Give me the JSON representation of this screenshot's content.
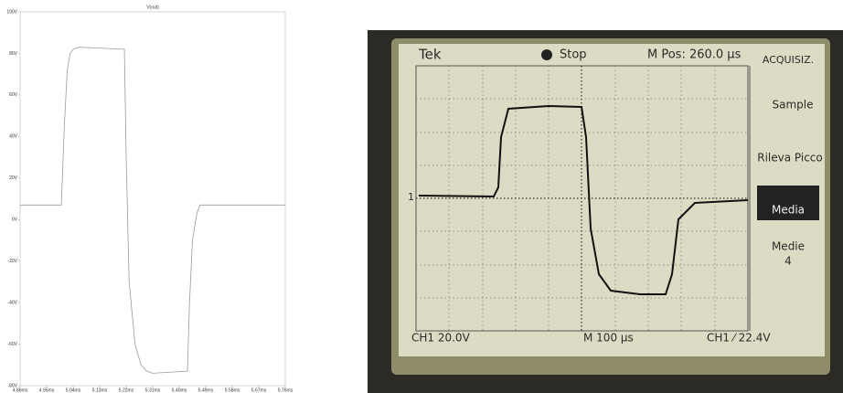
{
  "chart_data": {
    "type": "line",
    "title": "V(out)",
    "x": [
      4.86,
      5.0,
      5.01,
      5.02,
      5.03,
      5.04,
      5.06,
      5.214,
      5.22,
      5.23,
      5.25,
      5.27,
      5.29,
      5.31,
      5.428,
      5.435,
      5.445,
      5.46,
      5.47,
      5.76
    ],
    "series": [
      {
        "name": "V(out)",
        "color": "#9a9a9a",
        "values": [
          7,
          7,
          45,
          72,
          80,
          82,
          83,
          82,
          30,
          -30,
          -60,
          -70,
          -73,
          -74,
          -73,
          -40,
          -10,
          3,
          7,
          7
        ]
      }
    ],
    "xlim": [
      4.86,
      5.76
    ],
    "xticks": [
      {
        "value": 4.86,
        "label": "4.86ms"
      },
      {
        "value": 4.95,
        "label": "4.95ms"
      },
      {
        "value": 5.04,
        "label": "5.04ms"
      },
      {
        "value": 5.13,
        "label": "5.13ms"
      },
      {
        "value": 5.22,
        "label": "5.22ms"
      },
      {
        "value": 5.31,
        "label": "5.31ms"
      },
      {
        "value": 5.4,
        "label": "5.40ms"
      },
      {
        "value": 5.49,
        "label": "5.49ms"
      },
      {
        "value": 5.58,
        "label": "5.58ms"
      },
      {
        "value": 5.67,
        "label": "5.67ms"
      },
      {
        "value": 5.76,
        "label": "5.76ms"
      }
    ],
    "ylim": [
      -80,
      100
    ],
    "yticks": [
      {
        "value": -80,
        "label": "-80V"
      },
      {
        "value": -60,
        "label": "-60V"
      },
      {
        "value": -40,
        "label": "-40V"
      },
      {
        "value": -20,
        "label": "-20V"
      },
      {
        "value": 0,
        "label": "0V"
      },
      {
        "value": 20,
        "label": "20V"
      },
      {
        "value": 40,
        "label": "40V"
      },
      {
        "value": 60,
        "label": "60V"
      },
      {
        "value": 80,
        "label": "80V"
      },
      {
        "value": 100,
        "label": "100V"
      }
    ]
  },
  "scope": {
    "brand": "Tek",
    "status": "Stop",
    "position": "M Pos: 260.0 µs",
    "menu_title": "ACQUISIZ.",
    "menu": [
      "Sample",
      "Rileva Picco",
      "Media",
      "Medie"
    ],
    "averages": "4",
    "channel_marker": "1",
    "ch1_scale": "CH1  20.0V",
    "timebase": "M 100 µs",
    "trigger": "CH1 ⁄ 22.4V"
  }
}
